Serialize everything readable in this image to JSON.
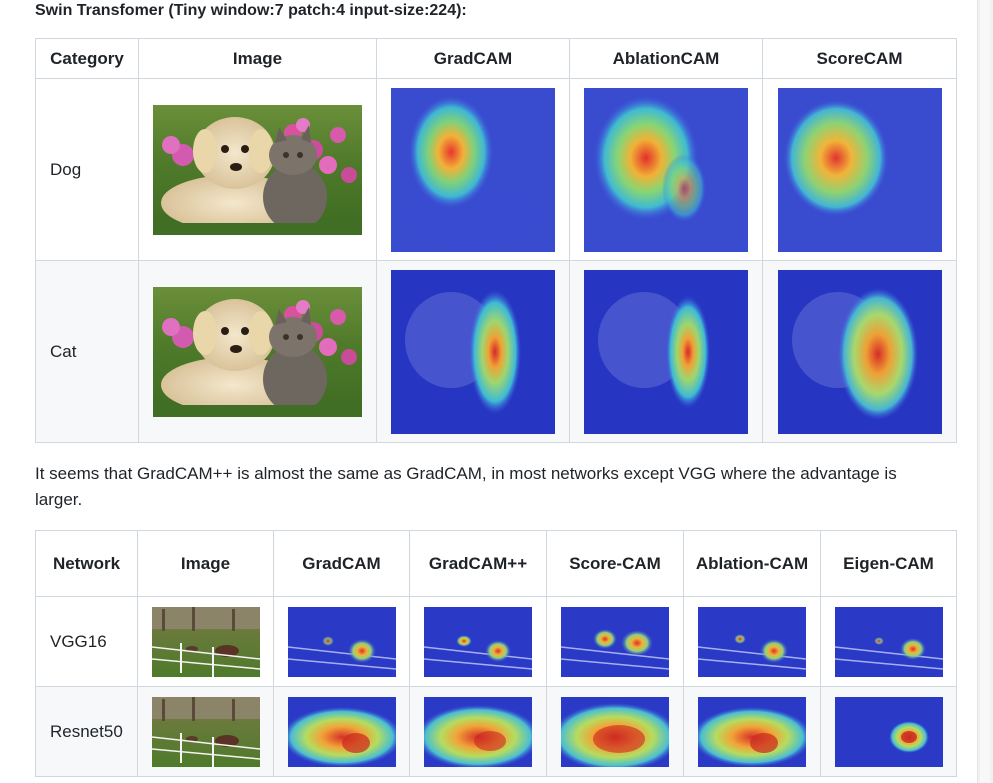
{
  "heading": "Swin Transfomer (Tiny window:7 patch:4 input-size:224):",
  "table1": {
    "headers": [
      "Category",
      "Image",
      "GradCAM",
      "AblationCAM",
      "ScoreCAM"
    ],
    "rows": [
      {
        "label": "Dog"
      },
      {
        "label": "Cat"
      }
    ]
  },
  "paragraph": "It seems that GradCAM++ is almost the same as GradCAM, in most networks except VGG where the advantage is larger.",
  "table2": {
    "headers": [
      "Network",
      "Image",
      "GradCAM",
      "GradCAM++",
      "Score-CAM",
      "Ablation-CAM",
      "Eigen-CAM"
    ],
    "rows": [
      {
        "label": "VGG16"
      },
      {
        "label": "Resnet50"
      }
    ]
  }
}
